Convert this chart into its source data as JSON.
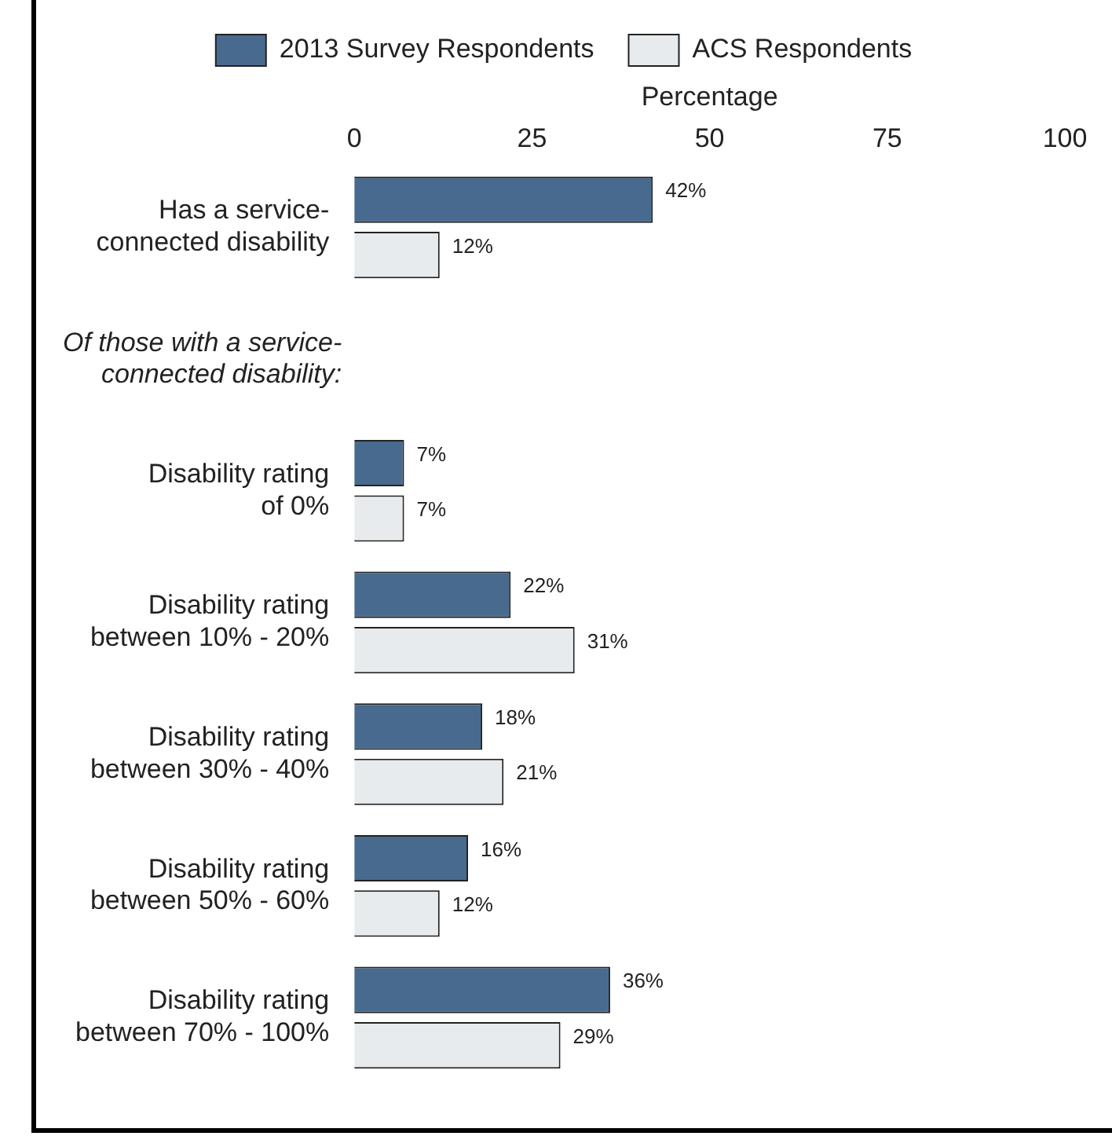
{
  "chart_data": {
    "type": "bar",
    "orientation": "horizontal",
    "xlabel": "Percentage",
    "categories": [
      "Has a service-\nconnected disability",
      null,
      "Disability rating\nof 0%",
      "Disability rating\nbetween 10% - 20%",
      "Disability rating\nbetween 30% - 40%",
      "Disability rating\nbetween 50% - 60%",
      "Disability rating\nbetween 70% - 100%"
    ],
    "series": [
      {
        "name": "2013 Survey Respondents",
        "color": "#476a8e",
        "values": [
          42,
          null,
          7,
          22,
          18,
          16,
          36
        ],
        "value_labels": [
          "42%",
          null,
          "7%",
          "22%",
          "18%",
          "16%",
          "36%"
        ]
      },
      {
        "name": "ACS Respondents",
        "color": "#e7ebee",
        "values": [
          12,
          null,
          7,
          31,
          21,
          12,
          29
        ],
        "value_labels": [
          "12%",
          null,
          "7%",
          "31%",
          "21%",
          "12%",
          "29%"
        ]
      }
    ],
    "annotations": [
      "Of those with a service-\nconnected disability:"
    ],
    "xlim": [
      0,
      100
    ],
    "xticks": [
      0,
      25,
      50,
      75,
      100
    ],
    "grid": false,
    "legend": "top"
  }
}
